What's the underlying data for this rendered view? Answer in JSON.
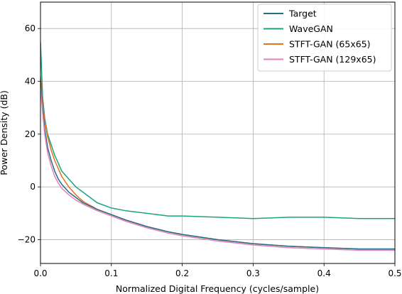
{
  "chart_data": {
    "type": "line",
    "xlabel": "Normalized Digital Frequency (cycles/sample)",
    "ylabel": "Power Density (dB)",
    "xlim": [
      0,
      0.5
    ],
    "ylim": [
      -29,
      70
    ],
    "x_ticks": [
      0,
      0.1,
      0.2,
      0.3,
      0.4,
      0.5
    ],
    "x_tick_labels": [
      "0.0",
      "0.1",
      "0.2",
      "0.3",
      "0.4",
      "0.5"
    ],
    "y_ticks": [
      -20,
      0,
      20,
      40,
      60
    ],
    "y_tick_labels": [
      "−20",
      "0",
      "20",
      "40",
      "60"
    ],
    "grid": true,
    "legend_position": "top-right",
    "series": [
      {
        "name": "Target",
        "color": "#1f6f8b",
        "x": [
          0.0,
          0.003,
          0.006,
          0.01,
          0.015,
          0.02,
          0.025,
          0.03,
          0.04,
          0.05,
          0.06,
          0.08,
          0.1,
          0.12,
          0.15,
          0.18,
          0.2,
          0.25,
          0.3,
          0.35,
          0.4,
          0.45,
          0.5
        ],
        "y": [
          40,
          30,
          22,
          15,
          10,
          6,
          3,
          1,
          -2,
          -4,
          -6,
          -8.5,
          -10.5,
          -12.5,
          -15,
          -17,
          -18,
          -20,
          -21.5,
          -22.5,
          -23,
          -23.5,
          -23.5
        ]
      },
      {
        "name": "WaveGAN",
        "color": "#1aa37f",
        "x": [
          0.0,
          0.003,
          0.006,
          0.01,
          0.015,
          0.02,
          0.025,
          0.03,
          0.04,
          0.05,
          0.06,
          0.07,
          0.08,
          0.1,
          0.12,
          0.15,
          0.18,
          0.2,
          0.25,
          0.3,
          0.35,
          0.4,
          0.45,
          0.5
        ],
        "y": [
          55,
          34,
          26,
          20,
          16,
          12,
          9,
          6,
          3,
          0,
          -2,
          -4,
          -6,
          -8,
          -9,
          -10,
          -11,
          -11,
          -11.5,
          -12,
          -11.5,
          -11.5,
          -12,
          -12
        ]
      },
      {
        "name": "STFT-GAN (65x65)",
        "color": "#e2731f",
        "x": [
          0.0,
          0.003,
          0.006,
          0.01,
          0.015,
          0.02,
          0.025,
          0.03,
          0.04,
          0.05,
          0.06,
          0.08,
          0.1,
          0.12,
          0.15,
          0.18,
          0.2,
          0.25,
          0.3,
          0.35,
          0.4,
          0.45,
          0.5
        ],
        "y": [
          42,
          32,
          25,
          19,
          14,
          10,
          7,
          4,
          0,
          -3,
          -5.5,
          -8.5,
          -10.5,
          -12.5,
          -15,
          -17,
          -18,
          -20,
          -21.5,
          -22.5,
          -23,
          -23.5,
          -23.5
        ]
      },
      {
        "name": "STFT-GAN (129x65)",
        "color": "#e47fb8",
        "x": [
          0.0,
          0.003,
          0.006,
          0.01,
          0.015,
          0.02,
          0.025,
          0.03,
          0.04,
          0.05,
          0.06,
          0.08,
          0.1,
          0.12,
          0.15,
          0.18,
          0.2,
          0.25,
          0.3,
          0.35,
          0.4,
          0.45,
          0.5
        ],
        "y": [
          38,
          28,
          20,
          13,
          8,
          4,
          1.5,
          -0.5,
          -3,
          -5,
          -6.5,
          -9,
          -11,
          -13,
          -15.5,
          -17.5,
          -18.5,
          -20.5,
          -22,
          -23,
          -23.5,
          -24,
          -24
        ]
      }
    ]
  }
}
